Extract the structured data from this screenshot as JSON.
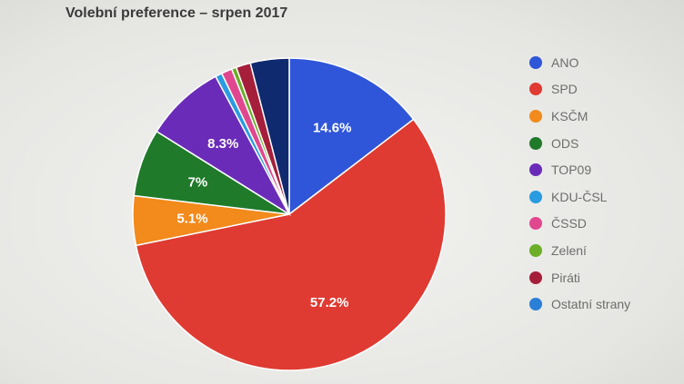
{
  "chart_data": {
    "type": "pie",
    "title": "Volební preference – srpen 2017",
    "slices": [
      {
        "name": "ANO",
        "value": 14.6,
        "label": "14.6%",
        "color": "#2f56d8"
      },
      {
        "name": "SPD",
        "value": 57.2,
        "label": "57.2%",
        "color": "#df3b32"
      },
      {
        "name": "KSČM",
        "value": 5.1,
        "label": "5.1%",
        "color": "#f28a1c"
      },
      {
        "name": "ODS",
        "value": 7,
        "label": "7%",
        "color": "#1f7a2a"
      },
      {
        "name": "TOP09",
        "value": 8.3,
        "label": "8.3%",
        "color": "#6a2cb8"
      },
      {
        "name": "KDU-ČSL",
        "value": 0.7,
        "label": "",
        "color": "#2a9be0"
      },
      {
        "name": "ČSSD",
        "value": 1.1,
        "label": "",
        "color": "#e0478e"
      },
      {
        "name": "Zelení",
        "value": 0.5,
        "label": "",
        "color": "#6cae28"
      },
      {
        "name": "Piráti",
        "value": 1.5,
        "label": "",
        "color": "#a51f3a"
      },
      {
        "name": "Ostatní strany",
        "value": 4.0,
        "label": "",
        "color": "#0f2a6e"
      }
    ],
    "legend_position": "right"
  },
  "legend": [
    {
      "label": "ANO",
      "color": "#2f56d8"
    },
    {
      "label": "SPD",
      "color": "#df3b32"
    },
    {
      "label": "KSČM",
      "color": "#f28a1c"
    },
    {
      "label": "ODS",
      "color": "#1f7a2a"
    },
    {
      "label": "TOP09",
      "color": "#6a2cb8"
    },
    {
      "label": "KDU-ČSL",
      "color": "#2a9be0"
    },
    {
      "label": "ČSSD",
      "color": "#e0478e"
    },
    {
      "label": "Zelení",
      "color": "#6cae28"
    },
    {
      "label": "Piráti",
      "color": "#a51f3a"
    },
    {
      "label": "Ostatní strany",
      "color": "#2a7fd6"
    }
  ]
}
